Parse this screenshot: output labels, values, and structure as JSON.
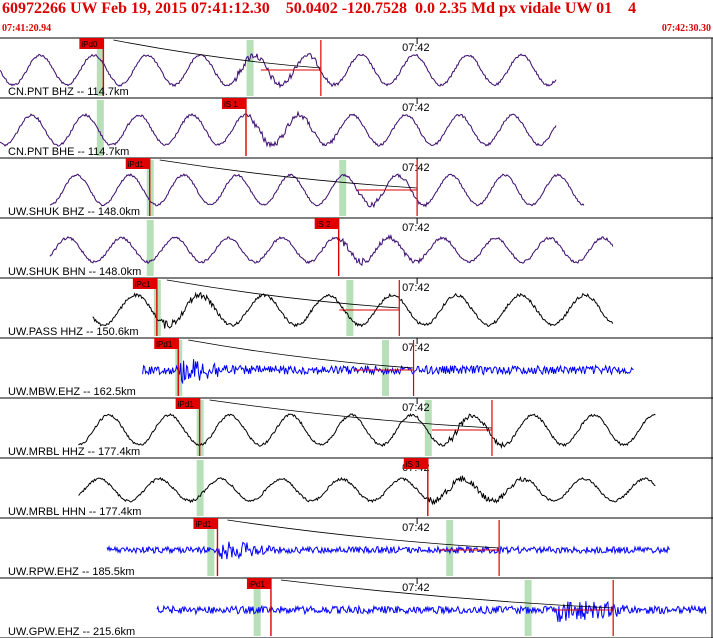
{
  "header": {
    "title": "60972266 UW Feb 19, 2015 07:41:12.30    50.0402 -120.7528  0.0 2.35 Md px vidale UW 01    4",
    "start_time": "07:41:20.94",
    "end_time": "07:42:30.30"
  },
  "chart_data": {
    "type": "line",
    "title": "",
    "time_window": [
      "07:41:20.94",
      "07:42:30.30"
    ],
    "minute_tick_label": "07:42",
    "series": [
      {
        "name": "CN.PNT BHZ -- 114.7km",
        "pick": "iPd0",
        "color": "#3a0a6e",
        "start": 0.0,
        "end": 0.78,
        "pick_pos": 0.145,
        "green": [
          0.14,
          0.35
        ],
        "noise": 0.25,
        "amp": 0.75,
        "period": 0.075,
        "burst": [
          0.33,
          0.47
        ],
        "curve": true,
        "coda": 0.45
      },
      {
        "name": "CN.PNT BHE -- 114.7km",
        "pick": "iS 1",
        "color": "#3a0a6e",
        "start": 0.0,
        "end": 0.78,
        "pick_pos": 0.345,
        "green": [
          0.14
        ],
        "noise": 0.25,
        "amp": 0.75,
        "period": 0.075,
        "burst": [
          0.35,
          0.47
        ],
        "curve": false
      },
      {
        "name": "UW.SHUK BHZ -- 148.0km",
        "pick": "iPd1",
        "color": "#3a0a6e",
        "start": 0.07,
        "end": 0.82,
        "pick_pos": 0.21,
        "green": [
          0.21,
          0.48
        ],
        "noise": 0.2,
        "amp": 0.75,
        "period": 0.075,
        "burst": [
          0.5,
          0.6
        ],
        "curve": true,
        "coda": 0.585
      },
      {
        "name": "UW.SHUK BHN -- 148.0km",
        "pick": "iS 2",
        "color": "#3a0a6e",
        "start": 0.07,
        "end": 0.86,
        "pick_pos": 0.475,
        "green": [
          0.21
        ],
        "noise": 0.25,
        "amp": 0.6,
        "period": 0.075,
        "burst": [
          0.48,
          0.6
        ],
        "curve": false
      },
      {
        "name": "UW.PASS HHZ -- 150.6km",
        "pick": "iPc1",
        "color": "#000000",
        "start": 0.13,
        "end": 0.86,
        "pick_pos": 0.22,
        "green": [
          0.22,
          0.49
        ],
        "noise": 0.3,
        "amp": 0.75,
        "period": 0.09,
        "burst": [
          0.22,
          0.3
        ],
        "curve": true,
        "coda": 0.56
      },
      {
        "name": "UW.MBW.EHZ -- 162.5km",
        "pick": "iPd1",
        "color": "#0000ff",
        "start": 0.2,
        "end": 0.89,
        "pick_pos": 0.25,
        "green": [
          0.25,
          0.54
        ],
        "noise": 0.4,
        "amp": 0.0,
        "period": 0.1,
        "burst": [
          0.25,
          0.32
        ],
        "curve": true,
        "coda": 0.58
      },
      {
        "name": "UW.MRBL HHZ -- 177.4km",
        "pick": "iPd1",
        "color": "#000000",
        "start": 0.11,
        "end": 0.92,
        "pick_pos": 0.28,
        "green": [
          0.28,
          0.6
        ],
        "noise": 0.25,
        "amp": 0.75,
        "period": 0.085,
        "burst": [
          0.63,
          0.72
        ],
        "curve": true,
        "coda": 0.69
      },
      {
        "name": "UW.MRBL HHN -- 177.4km",
        "pick": "iS 3",
        "color": "#000000",
        "start": 0.11,
        "end": 0.92,
        "pick_pos": 0.6,
        "green": [
          0.28
        ],
        "noise": 0.25,
        "amp": 0.55,
        "period": 0.085,
        "burst": [
          0.6,
          0.75
        ],
        "curve": false
      },
      {
        "name": "UW.RPW.EHZ -- 185.5km",
        "pick": "iPd1",
        "color": "#0000ff",
        "start": 0.15,
        "end": 0.94,
        "pick_pos": 0.305,
        "green": [
          0.295,
          0.63
        ],
        "noise": 0.3,
        "amp": 0.0,
        "period": 0.1,
        "burst": [
          0.305,
          0.38
        ],
        "curve": true,
        "coda": 0.7
      },
      {
        "name": "UW.GPW.EHZ -- 215.6km",
        "pick": "iPd1",
        "color": "#0000ff",
        "start": 0.22,
        "end": 0.99,
        "pick_pos": 0.38,
        "green": [
          0.36,
          0.74
        ],
        "noise": 0.35,
        "amp": 0.0,
        "period": 0.1,
        "burst": [
          0.78,
          0.88
        ],
        "curve": true,
        "coda": 0.86
      }
    ]
  }
}
